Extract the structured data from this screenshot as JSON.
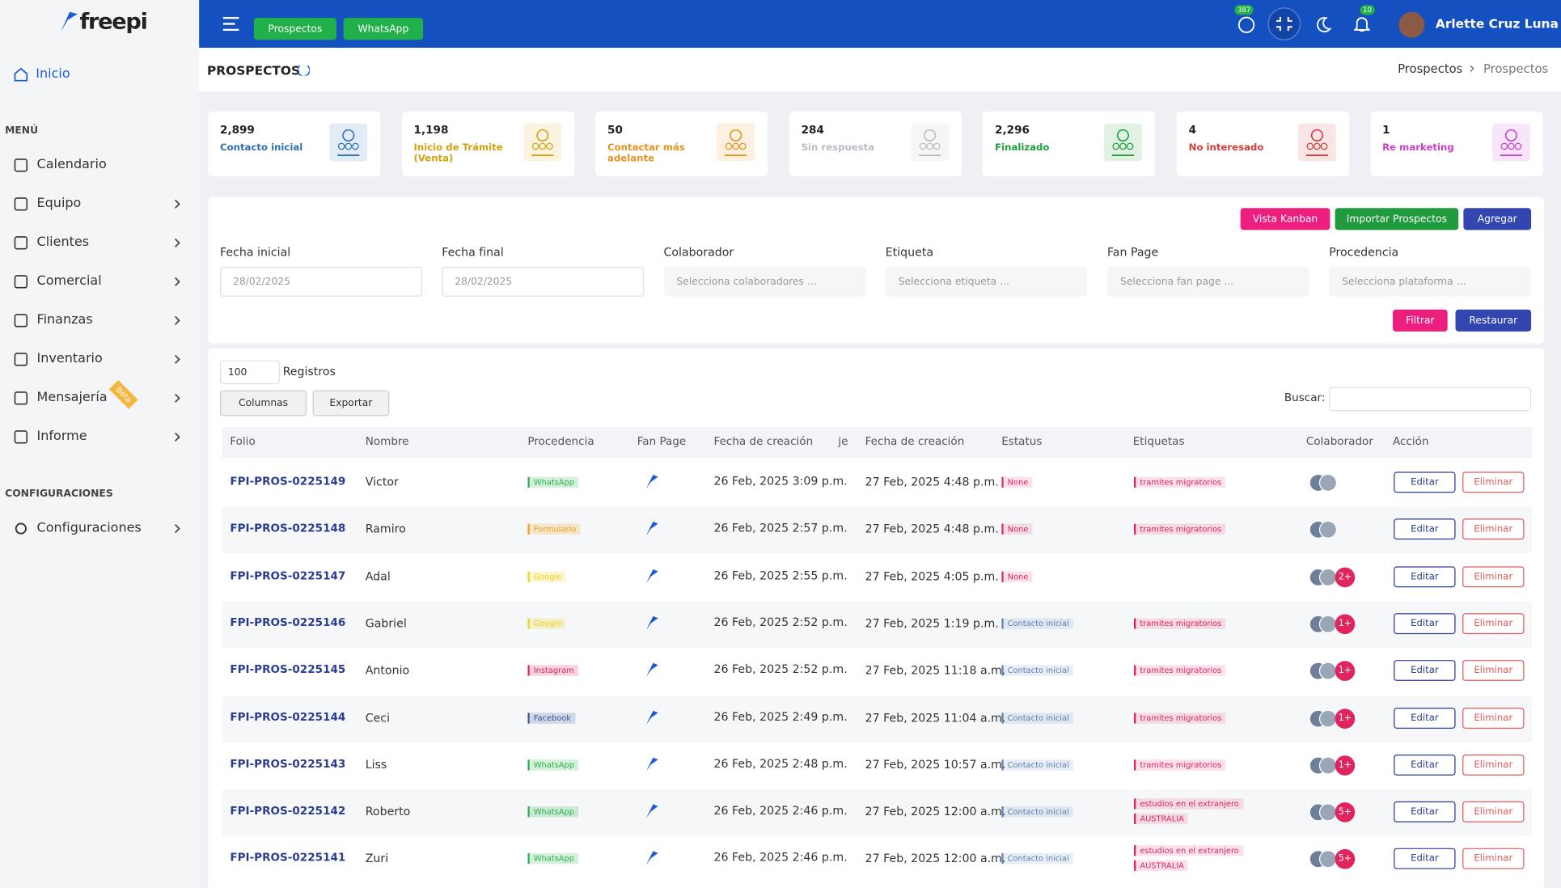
{
  "sidebar": {
    "logo": "freepi",
    "home": "Inicio",
    "menu_heading": "MENÚ",
    "menu": [
      "Calendario",
      "Equipo",
      "Clientes",
      "Comercial",
      "Finanzas",
      "Inventario",
      "Mensajería",
      "Informe"
    ],
    "menu_chevrons": [
      false,
      true,
      true,
      true,
      true,
      true,
      true,
      true
    ],
    "beta": "Beta",
    "config_heading": "CONFIGURACIONES",
    "config_menu": [
      "Configuraciones"
    ]
  },
  "topbar": {
    "buttons": [
      "Prospectos",
      "WhatsApp"
    ],
    "whatsapp_badge": "387",
    "notification_badge": "10",
    "user": "Arlette Cruz Luna"
  },
  "page": {
    "title": "PROSPECTOS",
    "breadcrumb": [
      "Prospectos",
      "Prospectos"
    ]
  },
  "stats": [
    {
      "value": "2,899",
      "label": "Contacto inicial",
      "color": "#2f6fb8"
    },
    {
      "value": "1,198",
      "label": "Inicio de Trámite (Venta)",
      "color": "#d4a20f"
    },
    {
      "value": "50",
      "label": "Contactar más adelante",
      "color": "#e8931e"
    },
    {
      "value": "284",
      "label": "Sin respuesta",
      "color": "#b9bcc2"
    },
    {
      "value": "2,296",
      "label": "Finalizado",
      "color": "#1f9d3a"
    },
    {
      "value": "4",
      "label": "No interesado",
      "color": "#d33a3a"
    },
    {
      "value": "1",
      "label": "Re marketing",
      "color": "#cc3fd1"
    }
  ],
  "actions": [
    {
      "label": "Vista Kanban",
      "color": "#ec1f7f"
    },
    {
      "label": "Importar Prospectos",
      "color": "#1f9a3c"
    },
    {
      "label": "Agregar",
      "color": "#3346b0"
    }
  ],
  "filters": [
    {
      "label": "Fecha inicial",
      "placeholder": "28/02/2025"
    },
    {
      "label": "Fecha final",
      "placeholder": "28/02/2025"
    },
    {
      "label": "Colaborador",
      "placeholder": "Selecciona colaboradores ..."
    },
    {
      "label": "Etiqueta",
      "placeholder": "Selecciona etiqueta ..."
    },
    {
      "label": "Fan Page",
      "placeholder": "Selecciona fan page ..."
    },
    {
      "label": "Procedencia",
      "placeholder": "Selecciona plataforma ..."
    }
  ],
  "filter_buttons": [
    {
      "label": "Filtrar",
      "color": "#ec1f7f"
    },
    {
      "label": "Restaurar",
      "color": "#3346b0"
    }
  ],
  "table_controls": {
    "page_size": "100",
    "records_label": "Registros",
    "columns_button": "Columnas",
    "export_button": "Exportar",
    "search_label": "Buscar:"
  },
  "table": {
    "columns": [
      "Folio",
      "Nombre",
      "Procedencia",
      "Fan Page",
      "Fecha de creación",
      "je",
      "Fecha de creación",
      "Estatus",
      "Etiquetas",
      "Colaborador",
      "Acción"
    ],
    "rows": [
      {
        "folio": "FPI-PROS-0225149",
        "nombre": "Victor",
        "procedencia": {
          "label": "WhatsApp",
          "color": "#2bb24c"
        },
        "fecha1": "26 Feb, 2025 3:09 p.m.",
        "fecha2": "27 Feb, 2025 4:48 p.m.",
        "estatus": {
          "label": "None",
          "color": "#e0245e"
        },
        "etiquetas": [
          "tramites migratorios"
        ],
        "extra": null
      },
      {
        "folio": "FPI-PROS-0225148",
        "nombre": "Ramiro",
        "procedencia": {
          "label": "Formulario",
          "color": "#f0a020"
        },
        "fecha1": "26 Feb, 2025 2:57 p.m.",
        "fecha2": "27 Feb, 2025 4:48 p.m.",
        "estatus": {
          "label": "None",
          "color": "#e0245e"
        },
        "etiquetas": [
          "tramites migratorios"
        ],
        "extra": null
      },
      {
        "folio": "FPI-PROS-0225147",
        "nombre": "Adal",
        "procedencia": {
          "label": "Google",
          "color": "#f2d21c"
        },
        "fecha1": "26 Feb, 2025 2:55 p.m.",
        "fecha2": "27 Feb, 2025 4:05 p.m.",
        "estatus": {
          "label": "None",
          "color": "#e0245e"
        },
        "etiquetas": [],
        "extra": "2+"
      },
      {
        "folio": "FPI-PROS-0225146",
        "nombre": "Gabriel",
        "procedencia": {
          "label": "Google",
          "color": "#f2d21c"
        },
        "fecha1": "26 Feb, 2025 2:52 p.m.",
        "fecha2": "27 Feb, 2025 1:19 p.m.",
        "estatus": {
          "label": "Contacto inicial",
          "color": "#5b7fb5"
        },
        "etiquetas": [
          "tramites migratorios"
        ],
        "extra": "1+"
      },
      {
        "folio": "FPI-PROS-0225145",
        "nombre": "Antonio",
        "procedencia": {
          "label": "Instagram",
          "color": "#e0245e"
        },
        "fecha1": "26 Feb, 2025 2:52 p.m.",
        "fecha2": "27 Feb, 2025 11:18 a.m.",
        "estatus": {
          "label": "Contacto inicial",
          "color": "#5b7fb5"
        },
        "etiquetas": [
          "tramites migratorios"
        ],
        "extra": "1+"
      },
      {
        "folio": "FPI-PROS-0225144",
        "nombre": "Ceci",
        "procedencia": {
          "label": "Facebook",
          "color": "#3b5998"
        },
        "fecha1": "26 Feb, 2025 2:49 p.m.",
        "fecha2": "27 Feb, 2025 11:04 a.m.",
        "estatus": {
          "label": "Contacto inicial",
          "color": "#5b7fb5"
        },
        "etiquetas": [
          "tramites migratorios"
        ],
        "extra": "1+"
      },
      {
        "folio": "FPI-PROS-0225143",
        "nombre": "Liss",
        "procedencia": {
          "label": "WhatsApp",
          "color": "#2bb24c"
        },
        "fecha1": "26 Feb, 2025 2:48 p.m.",
        "fecha2": "27 Feb, 2025 10:57 a.m.",
        "estatus": {
          "label": "Contacto inicial",
          "color": "#5b7fb5"
        },
        "etiquetas": [
          "tramites migratorios"
        ],
        "extra": "1+"
      },
      {
        "folio": "FPI-PROS-0225142",
        "nombre": "Roberto",
        "procedencia": {
          "label": "WhatsApp",
          "color": "#2bb24c"
        },
        "fecha1": "26 Feb, 2025 2:46 p.m.",
        "fecha2": "27 Feb, 2025 12:00 a.m.",
        "estatus": {
          "label": "Contacto inicial",
          "color": "#5b7fb5"
        },
        "etiquetas": [
          "estudios en el extranjero",
          "AUSTRALIA"
        ],
        "extra": "5+"
      },
      {
        "folio": "FPI-PROS-0225141",
        "nombre": "Zuri",
        "procedencia": {
          "label": "WhatsApp",
          "color": "#2bb24c"
        },
        "fecha1": "26 Feb, 2025 2:46 p.m.",
        "fecha2": "27 Feb, 2025 12:00 a.m.",
        "estatus": {
          "label": "Contacto inicial",
          "color": "#5b7fb5"
        },
        "etiquetas": [
          "estudios en el extranjero",
          "AUSTRALIA"
        ],
        "extra": "5+"
      }
    ],
    "row_actions": [
      "Editar",
      "Eliminar"
    ]
  }
}
